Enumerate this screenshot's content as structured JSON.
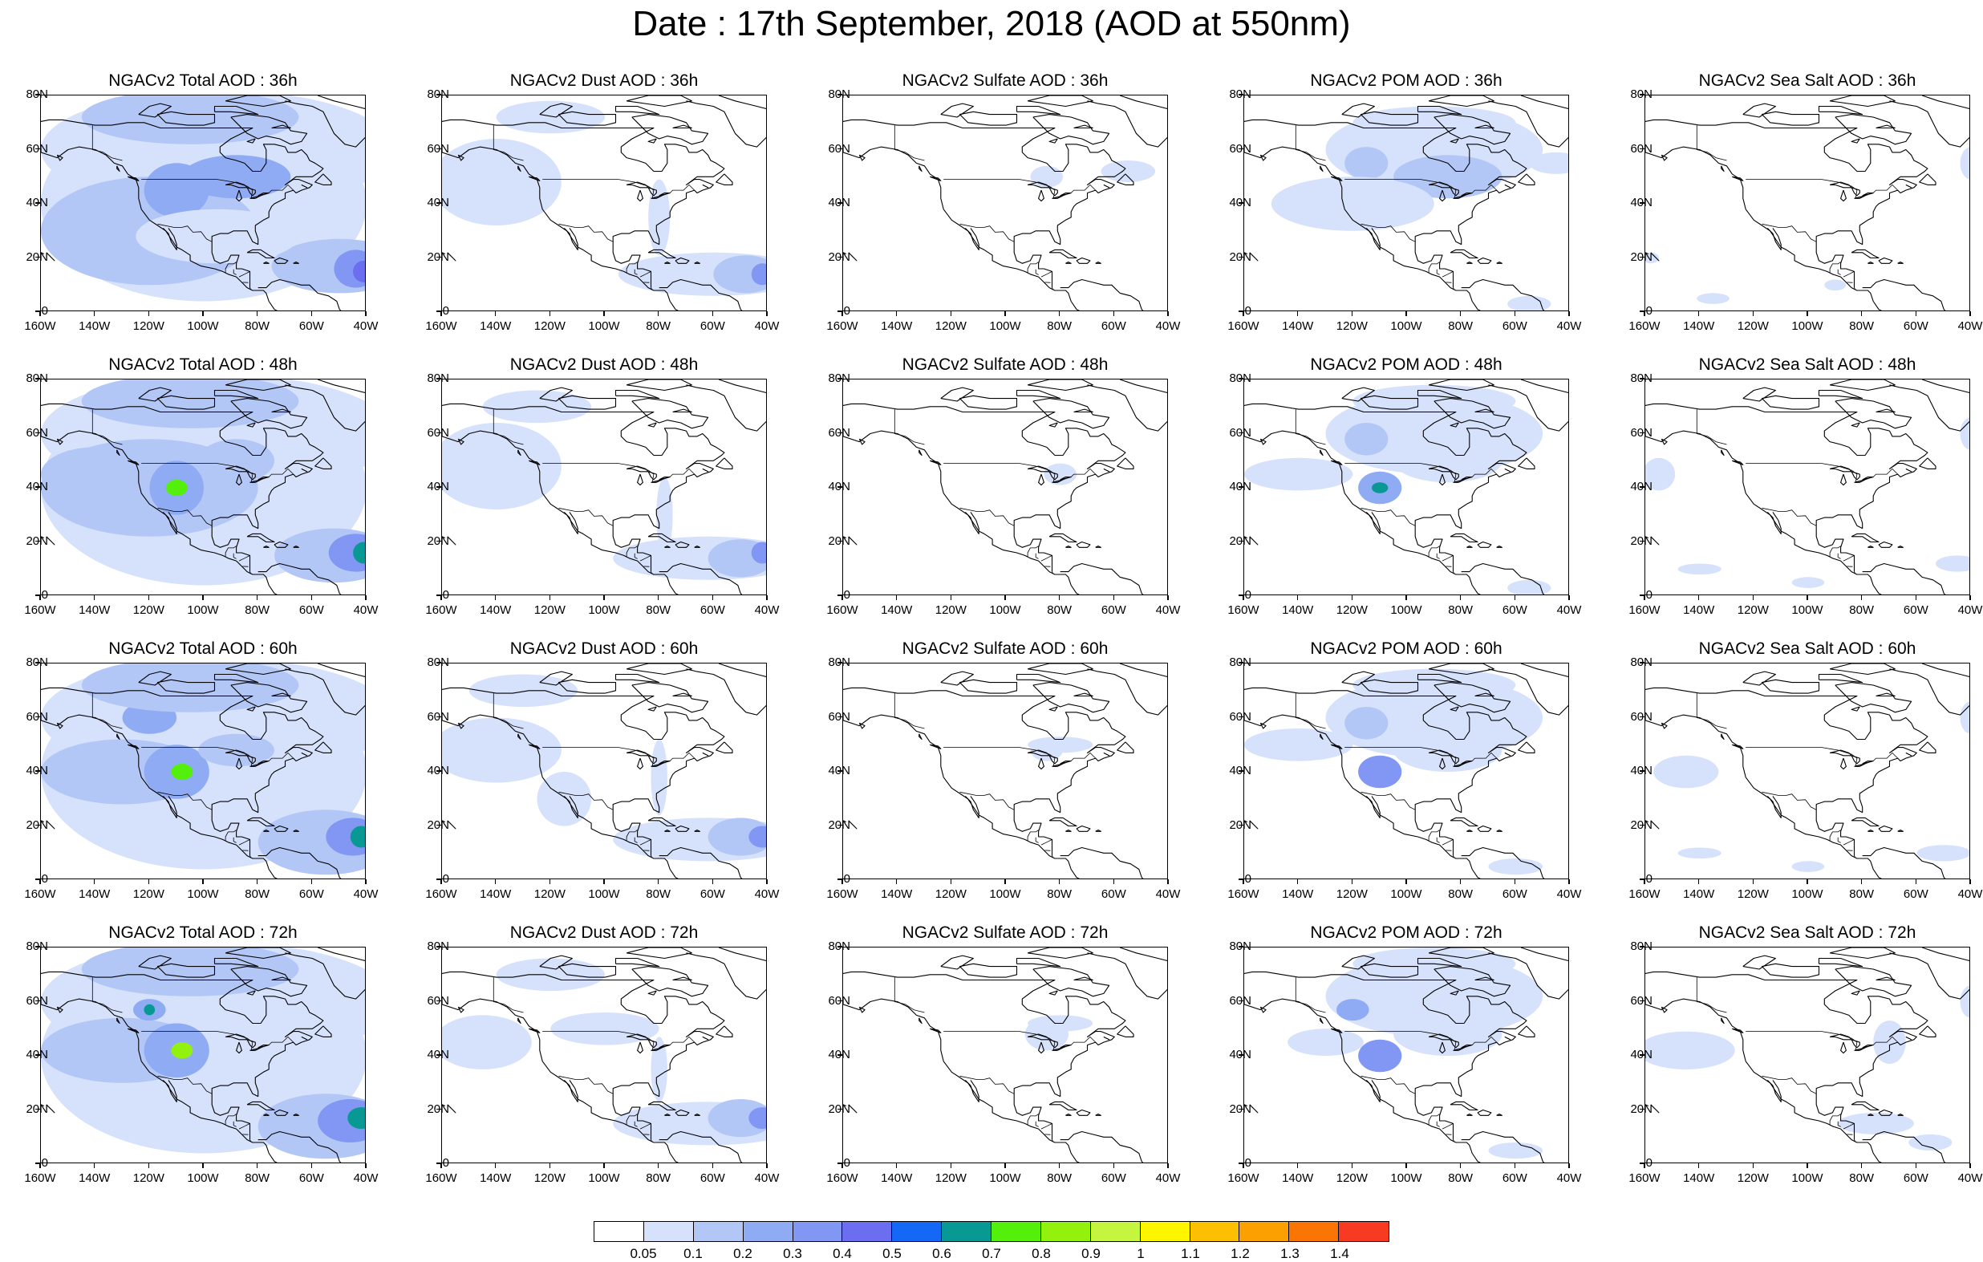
{
  "title": "Date : 17th September, 2018 (AOD at 550nm)",
  "panels": [
    {
      "title": "NGACv2 Total AOD : 36h",
      "species": "total",
      "hour": "36h"
    },
    {
      "title": "NGACv2 Dust AOD : 36h",
      "species": "dust",
      "hour": "36h"
    },
    {
      "title": "NGACv2 Sulfate AOD : 36h",
      "species": "sulfate",
      "hour": "36h"
    },
    {
      "title": "NGACv2 POM AOD : 36h",
      "species": "pom",
      "hour": "36h"
    },
    {
      "title": "NGACv2 Sea Salt AOD : 36h",
      "species": "seasalt",
      "hour": "36h"
    },
    {
      "title": "NGACv2 Total AOD : 48h",
      "species": "total",
      "hour": "48h"
    },
    {
      "title": "NGACv2 Dust AOD : 48h",
      "species": "dust",
      "hour": "48h"
    },
    {
      "title": "NGACv2 Sulfate AOD : 48h",
      "species": "sulfate",
      "hour": "48h"
    },
    {
      "title": "NGACv2 POM AOD : 48h",
      "species": "pom",
      "hour": "48h"
    },
    {
      "title": "NGACv2 Sea Salt AOD : 48h",
      "species": "seasalt",
      "hour": "48h"
    },
    {
      "title": "NGACv2 Total AOD : 60h",
      "species": "total",
      "hour": "60h"
    },
    {
      "title": "NGACv2 Dust AOD : 60h",
      "species": "dust",
      "hour": "60h"
    },
    {
      "title": "NGACv2 Sulfate AOD : 60h",
      "species": "sulfate",
      "hour": "60h"
    },
    {
      "title": "NGACv2 POM AOD : 60h",
      "species": "pom",
      "hour": "60h"
    },
    {
      "title": "NGACv2 Sea Salt AOD : 60h",
      "species": "seasalt",
      "hour": "60h"
    },
    {
      "title": "NGACv2 Total AOD : 72h",
      "species": "total",
      "hour": "72h"
    },
    {
      "title": "NGACv2 Dust AOD : 72h",
      "species": "dust",
      "hour": "72h"
    },
    {
      "title": "NGACv2 Sulfate AOD : 72h",
      "species": "sulfate",
      "hour": "72h"
    },
    {
      "title": "NGACv2 POM AOD : 72h",
      "species": "pom",
      "hour": "72h"
    },
    {
      "title": "NGACv2 Sea Salt  AOD : 72h",
      "species": "seasalt",
      "hour": "72h"
    }
  ],
  "y_ticks": [
    "80N",
    "60N",
    "40N",
    "20N",
    "0"
  ],
  "x_ticks": [
    "160W",
    "140W",
    "120W",
    "100W",
    "80W",
    "60W",
    "40W"
  ],
  "map_extent": {
    "lon_min": -160,
    "lon_max": -40,
    "lat_min": 0,
    "lat_max": 80
  },
  "colorbar": {
    "colors": [
      "#ffffff",
      "#d6e1fb",
      "#b3c7f7",
      "#8fabf4",
      "#8197f3",
      "#6b6ef0",
      "#1568f5",
      "#089994",
      "#54f00b",
      "#93f20d",
      "#c5f53f",
      "#fef500",
      "#fdc000",
      "#fca000",
      "#fb7505",
      "#f93a22"
    ],
    "labels": [
      "0.05",
      "0.1",
      "0.2",
      "0.3",
      "0.4",
      "0.5",
      "0.6",
      "0.7",
      "0.8",
      "0.9",
      "1",
      "1.1",
      "1.2",
      "1.3",
      "1.4"
    ]
  }
}
